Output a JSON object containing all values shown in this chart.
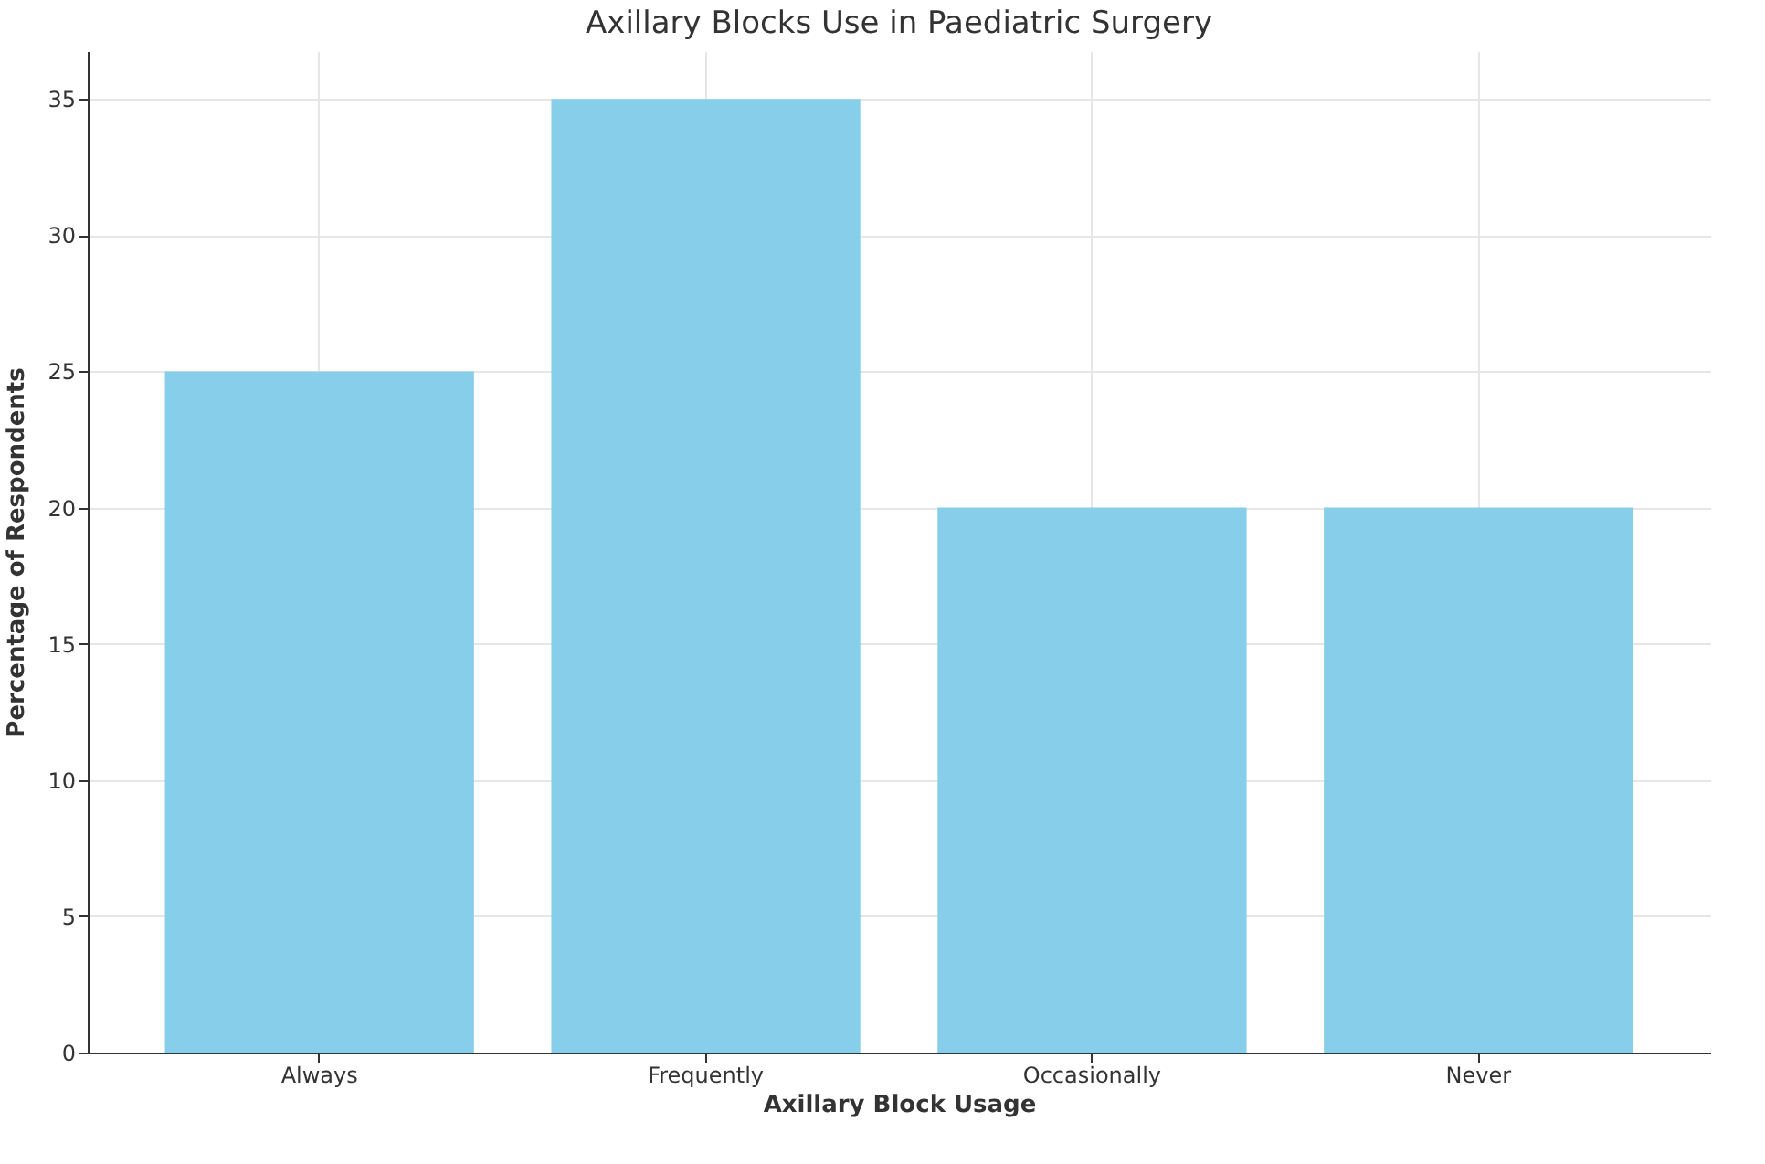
{
  "chart_data": {
    "type": "bar",
    "title": "Axillary Blocks Use in Paediatric Surgery",
    "xlabel": "Axillary Block Usage",
    "ylabel": "Percentage of Respondents",
    "categories": [
      "Always",
      "Frequently",
      "Occasionally",
      "Never"
    ],
    "values": [
      25,
      35,
      20,
      20
    ],
    "color": "#87ceeb",
    "ylim": [
      0,
      36.75
    ],
    "yticks": [
      0,
      5,
      10,
      15,
      20,
      25,
      30,
      35
    ],
    "grid": true
  }
}
